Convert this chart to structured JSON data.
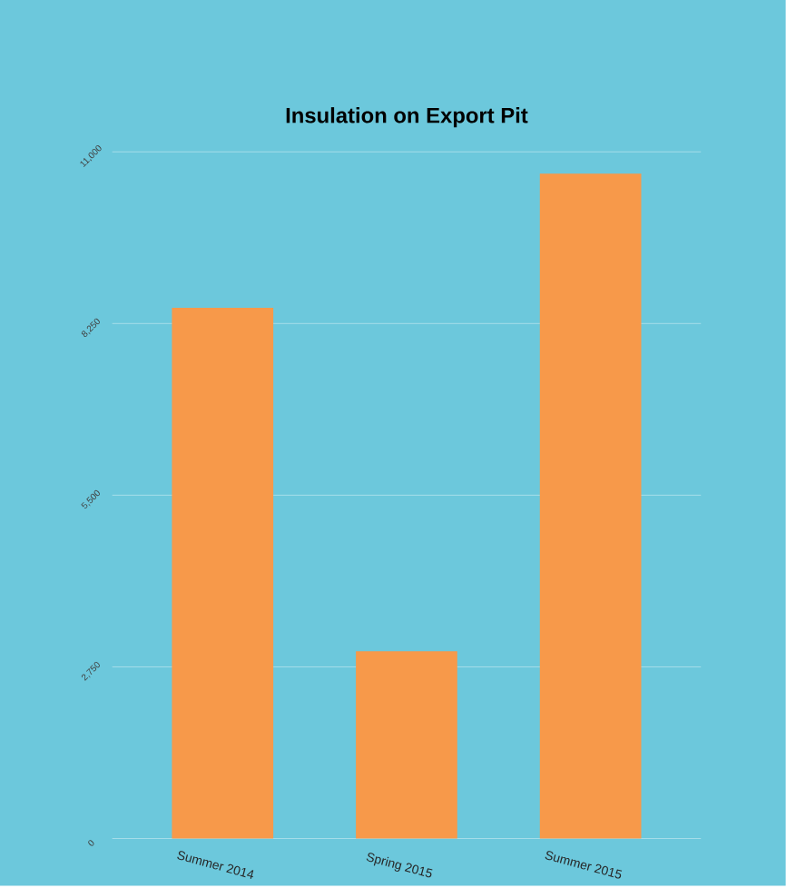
{
  "chart_data": {
    "type": "bar",
    "title": "Insulation on Export Pit",
    "categories": [
      "Summer 2014",
      "Spring 2015",
      "Summer 2015"
    ],
    "values": [
      8500,
      3000,
      10650
    ],
    "color": "#f7994a",
    "ylim": [
      0,
      11000
    ],
    "yticks": [
      0,
      {
        "value": 2750,
        "label": "2,750"
      },
      {
        "value": 5500,
        "label": "5,500"
      },
      {
        "value": 8250,
        "label": "8,250"
      },
      {
        "value": 11000,
        "label": "11,000"
      }
    ],
    "grid": "y"
  }
}
